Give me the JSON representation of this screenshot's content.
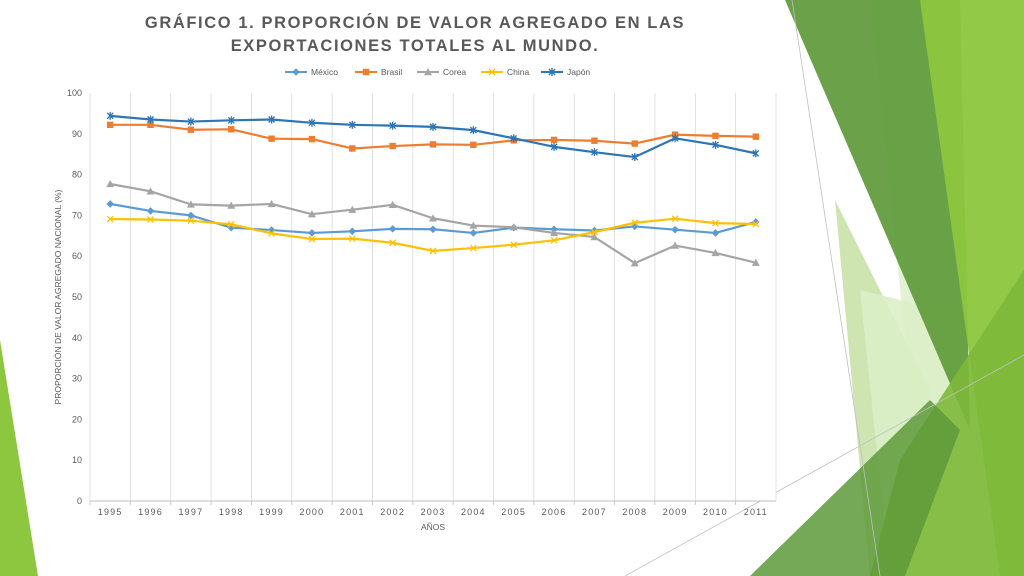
{
  "chart_data": {
    "type": "line",
    "title": "GRÁFICO 1. PROPORCIÓN DE VALOR AGREGADO EN LAS EXPORTACIONES TOTALES AL MUNDO.",
    "xlabel": "AÑOS",
    "ylabel": "PROPORCIÓN DE VALOR AGREGADO NACIONAL (%)",
    "ylim": [
      0,
      100
    ],
    "yticks": [
      0,
      10,
      20,
      30,
      40,
      50,
      60,
      70,
      80,
      90,
      100
    ],
    "grid": "vertical",
    "legend_position": "top",
    "categories": [
      "1995",
      "1996",
      "1997",
      "1998",
      "1999",
      "2000",
      "2001",
      "2002",
      "2003",
      "2004",
      "2005",
      "2006",
      "2007",
      "2008",
      "2009",
      "2010",
      "2011"
    ],
    "series": [
      {
        "name": "México",
        "color": "#5B9BD5",
        "marker": "diamond",
        "values": [
          72.8,
          71.1,
          70.0,
          67.0,
          66.4,
          65.7,
          66.1,
          66.7,
          66.6,
          65.7,
          67.0,
          66.6,
          66.3,
          67.3,
          66.5,
          65.7,
          68.4
        ]
      },
      {
        "name": "Brasil",
        "color": "#ED7D31",
        "marker": "square",
        "values": [
          92.2,
          92.2,
          91.0,
          91.1,
          88.8,
          88.7,
          86.4,
          87.0,
          87.4,
          87.3,
          88.4,
          88.5,
          88.3,
          87.6,
          89.8,
          89.5,
          89.3
        ]
      },
      {
        "name": "Corea",
        "color": "#A5A5A5",
        "marker": "triangle",
        "values": [
          77.7,
          75.9,
          72.7,
          72.4,
          72.8,
          70.3,
          71.4,
          72.6,
          69.3,
          67.5,
          67.1,
          65.7,
          64.7,
          58.3,
          62.6,
          60.8,
          58.4
        ]
      },
      {
        "name": "China",
        "color": "#FFC000",
        "marker": "x",
        "values": [
          69.1,
          69.0,
          68.7,
          67.8,
          65.6,
          64.2,
          64.3,
          63.3,
          61.3,
          62.0,
          62.8,
          63.9,
          65.9,
          68.2,
          69.2,
          68.1,
          67.9
        ]
      },
      {
        "name": "Japón",
        "color": "#2E75B6",
        "marker": "star",
        "values": [
          94.4,
          93.5,
          93.0,
          93.3,
          93.5,
          92.7,
          92.2,
          92.0,
          91.7,
          90.9,
          88.9,
          86.8,
          85.5,
          84.3,
          88.9,
          87.3,
          85.2
        ]
      }
    ]
  },
  "theme": {
    "green_dark": "#5E9A3A",
    "green_mid": "#8DC63F",
    "green_light": "#C5E0A5",
    "green_pale": "#E2F0D0",
    "grid_color": "#D9D9D9",
    "axis_color": "#BFBFBF"
  }
}
